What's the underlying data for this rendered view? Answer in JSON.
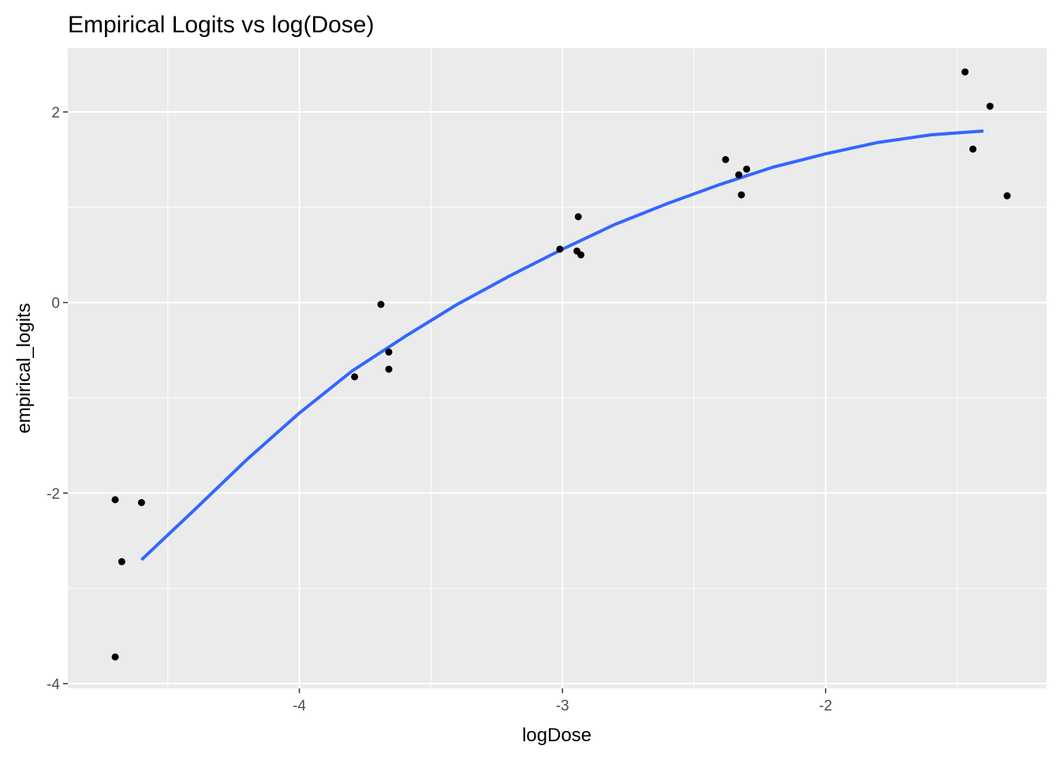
{
  "chart_data": {
    "type": "scatter",
    "title": "Empirical Logits vs log(Dose)",
    "xlabel": "logDose",
    "ylabel": "empirical_logits",
    "xlim": [
      -4.88,
      -1.16
    ],
    "ylim": [
      -4.05,
      2.67
    ],
    "x_ticks": [
      -4,
      -3,
      -2
    ],
    "x_tick_labels": [
      "-4",
      "-3",
      "-2"
    ],
    "x_minor_ticks": [
      -4.5,
      -3.5,
      -2.5,
      -1.5
    ],
    "y_ticks": [
      -4,
      -2,
      0,
      2
    ],
    "y_tick_labels": [
      "-4",
      "-2",
      "0",
      "2"
    ],
    "y_minor_ticks": [
      -3,
      -1,
      1
    ],
    "grid": true,
    "panel_color": "#ebebeb",
    "grid_color": "#ffffff",
    "point_color": "#000000",
    "smooth_color": "#3366ff",
    "points": [
      {
        "x": -4.7,
        "y": -2.07
      },
      {
        "x": -4.6,
        "y": -2.1
      },
      {
        "x": -4.675,
        "y": -2.72
      },
      {
        "x": -4.7,
        "y": -3.72
      },
      {
        "x": -3.79,
        "y": -0.78
      },
      {
        "x": -3.69,
        "y": -0.02
      },
      {
        "x": -3.66,
        "y": -0.52
      },
      {
        "x": -3.66,
        "y": -0.7
      },
      {
        "x": -3.01,
        "y": 0.56
      },
      {
        "x": -2.945,
        "y": 0.54
      },
      {
        "x": -2.94,
        "y": 0.9
      },
      {
        "x": -2.93,
        "y": 0.5
      },
      {
        "x": -2.38,
        "y": 1.5
      },
      {
        "x": -2.33,
        "y": 1.34
      },
      {
        "x": -2.32,
        "y": 1.13
      },
      {
        "x": -2.3,
        "y": 1.4
      },
      {
        "x": -1.47,
        "y": 2.42
      },
      {
        "x": -1.44,
        "y": 1.61
      },
      {
        "x": -1.375,
        "y": 2.06
      },
      {
        "x": -1.31,
        "y": 1.12
      }
    ],
    "smooth_line": [
      {
        "x": -4.6,
        "y": -2.7
      },
      {
        "x": -4.4,
        "y": -2.18
      },
      {
        "x": -4.2,
        "y": -1.65
      },
      {
        "x": -4.0,
        "y": -1.16
      },
      {
        "x": -3.8,
        "y": -0.72
      },
      {
        "x": -3.6,
        "y": -0.36
      },
      {
        "x": -3.4,
        "y": -0.02
      },
      {
        "x": -3.2,
        "y": 0.28
      },
      {
        "x": -3.0,
        "y": 0.56
      },
      {
        "x": -2.8,
        "y": 0.82
      },
      {
        "x": -2.6,
        "y": 1.04
      },
      {
        "x": -2.4,
        "y": 1.24
      },
      {
        "x": -2.2,
        "y": 1.42
      },
      {
        "x": -2.0,
        "y": 1.56
      },
      {
        "x": -1.8,
        "y": 1.68
      },
      {
        "x": -1.6,
        "y": 1.76
      },
      {
        "x": -1.4,
        "y": 1.8
      }
    ]
  }
}
